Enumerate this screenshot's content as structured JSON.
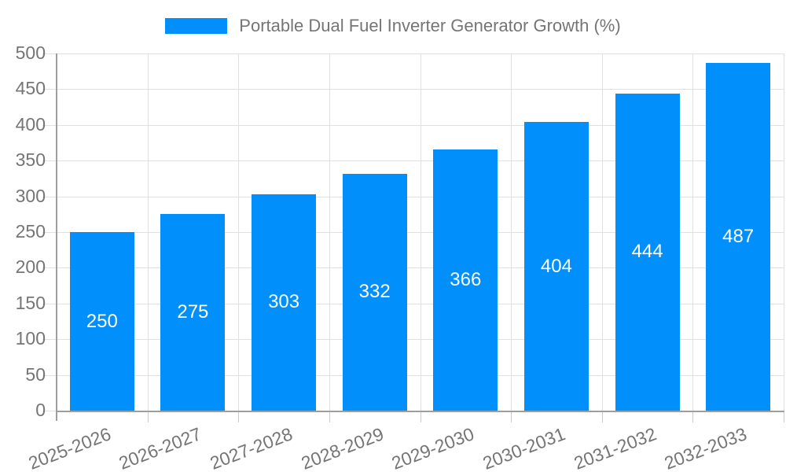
{
  "chart_data": {
    "type": "bar",
    "title": "Portable Dual Fuel Inverter Generator Growth (%)",
    "categories": [
      "2025-2026",
      "2026-2027",
      "2027-2028",
      "2028-2029",
      "2029-2030",
      "2030-2031",
      "2031-2032",
      "2032-2033"
    ],
    "values": [
      250,
      275,
      303,
      332,
      366,
      404,
      444,
      487
    ],
    "value_labels": [
      "250",
      "275",
      "303",
      "332",
      "366",
      "404",
      "444",
      "487"
    ],
    "xlabel": "",
    "ylabel": "",
    "ylim": [
      0,
      500
    ],
    "ytick_step": 50,
    "yticks": [
      0,
      50,
      100,
      150,
      200,
      250,
      300,
      350,
      400,
      450,
      500
    ],
    "grid": "on",
    "legend_position": "top",
    "colors": {
      "bar": "#008FFB",
      "axis_text": "#757575",
      "legend_text": "#757575",
      "gridline": "#e0e0e0",
      "axis_line": "#9e9e9e",
      "tick_mark": "#cccccc",
      "value_label": "#ffffff",
      "background": "#ffffff"
    }
  }
}
